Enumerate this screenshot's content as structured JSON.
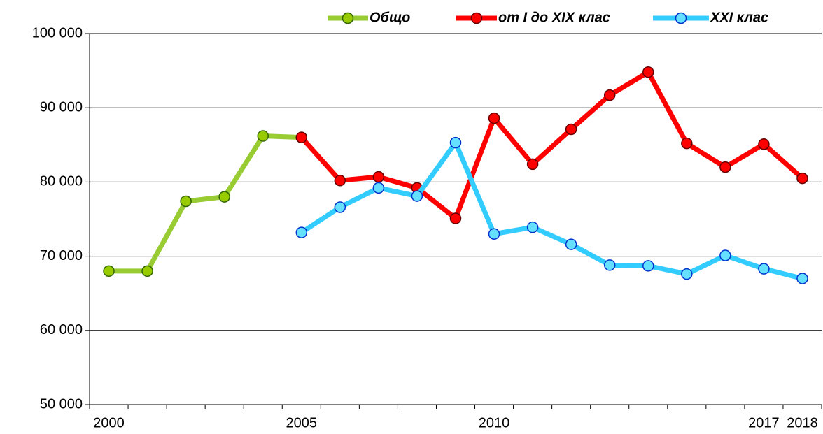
{
  "chart_data": {
    "type": "line",
    "categories": [
      "2000",
      null,
      null,
      null,
      null,
      "2005",
      null,
      null,
      null,
      null,
      "2010",
      null,
      null,
      null,
      null,
      null,
      null,
      "2017",
      "2018"
    ],
    "series": [
      {
        "name": "Общо",
        "color": "#99cc33",
        "marker_color": "#99cc00",
        "values": [
          68000,
          68000,
          77400,
          78000,
          86200,
          86000,
          null,
          null,
          null,
          null,
          null,
          null,
          null,
          null,
          null,
          null,
          null,
          null,
          null
        ]
      },
      {
        "name": "от I до XIX клас",
        "color": "#ff0000",
        "marker_color": "#ff0000",
        "values": [
          null,
          null,
          null,
          null,
          null,
          86000,
          80200,
          80700,
          79200,
          75100,
          88600,
          82400,
          87100,
          91700,
          94800,
          85200,
          82000,
          85100,
          80500
        ]
      },
      {
        "name": "XXI клас",
        "color": "#33ccff",
        "marker_color": "#66e0ff",
        "values": [
          null,
          null,
          null,
          null,
          null,
          73200,
          76600,
          79200,
          78100,
          85300,
          73000,
          73900,
          71600,
          68800,
          68700,
          67600,
          70100,
          68300,
          67000
        ]
      }
    ],
    "ylim": [
      50000,
      100000
    ],
    "yticks": [
      {
        "value": 50000,
        "label": "50 000"
      },
      {
        "value": 60000,
        "label": "60 000"
      },
      {
        "value": 70000,
        "label": "70 000"
      },
      {
        "value": 80000,
        "label": "80 000"
      },
      {
        "value": 90000,
        "label": "90 000"
      },
      {
        "value": 100000,
        "label": "100 000"
      }
    ],
    "grid": true,
    "legend": "top"
  }
}
